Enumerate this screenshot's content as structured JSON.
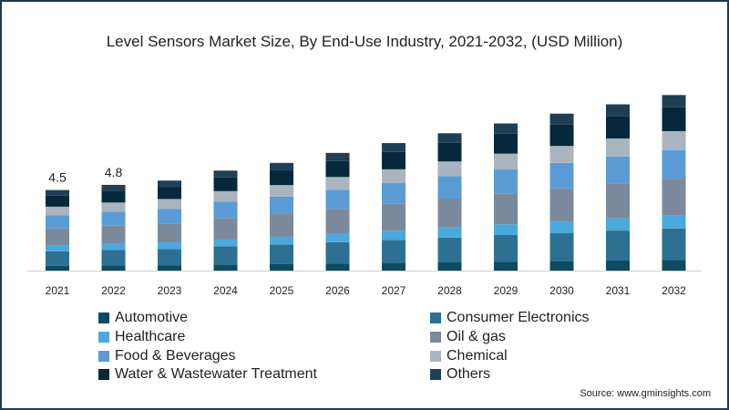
{
  "chart_data": {
    "type": "bar",
    "stacked": true,
    "title": "Level Sensors Market Size, By End-Use Industry, 2021-2032, (USD  Million)",
    "categories": [
      "2021",
      "2022",
      "2023",
      "2024",
      "2025",
      "2026",
      "2027",
      "2028",
      "2029",
      "2030",
      "2031",
      "2032"
    ],
    "data_labels": {
      "2021": "4.5",
      "2022": "4.8"
    },
    "legend_position": "bottom",
    "grid": false,
    "ylim": [
      0,
      10
    ],
    "series": [
      {
        "name": "Automotive",
        "color": "#0d4a63",
        "values": [
          0.27,
          0.29,
          0.3,
          0.34,
          0.36,
          0.4,
          0.43,
          0.46,
          0.5,
          0.53,
          0.56,
          0.59
        ]
      },
      {
        "name": "Consumer Electronics",
        "color": "#2d7091",
        "values": [
          0.81,
          0.86,
          0.91,
          1.01,
          1.09,
          1.19,
          1.29,
          1.39,
          1.49,
          1.58,
          1.68,
          1.77
        ]
      },
      {
        "name": "Healthcare",
        "color": "#4aa9dd",
        "values": [
          0.33,
          0.35,
          0.37,
          0.41,
          0.44,
          0.48,
          0.52,
          0.56,
          0.6,
          0.64,
          0.68,
          0.72
        ]
      },
      {
        "name": "Oil & gas",
        "color": "#7a8a9c",
        "values": [
          0.95,
          1.01,
          1.06,
          1.18,
          1.27,
          1.39,
          1.5,
          1.62,
          1.73,
          1.85,
          1.96,
          2.07
        ]
      },
      {
        "name": "Food & Beverages",
        "color": "#5b9bd5",
        "values": [
          0.73,
          0.78,
          0.82,
          0.91,
          0.98,
          1.07,
          1.16,
          1.25,
          1.34,
          1.43,
          1.51,
          1.6
        ]
      },
      {
        "name": "Chemical",
        "color": "#a9b4bf",
        "values": [
          0.49,
          0.52,
          0.55,
          0.6,
          0.65,
          0.71,
          0.77,
          0.83,
          0.89,
          0.95,
          1.01,
          1.06
        ]
      },
      {
        "name": "Water & Wastewater Treatment",
        "color": "#06283a",
        "values": [
          0.61,
          0.65,
          0.68,
          0.76,
          0.82,
          0.89,
          0.97,
          1.04,
          1.11,
          1.19,
          1.26,
          1.33
        ]
      },
      {
        "name": "Others",
        "color": "#1e3f55",
        "values": [
          0.32,
          0.34,
          0.35,
          0.39,
          0.42,
          0.46,
          0.5,
          0.54,
          0.58,
          0.62,
          0.65,
          0.69
        ]
      }
    ]
  },
  "source": "Source: www.gminsights.com"
}
